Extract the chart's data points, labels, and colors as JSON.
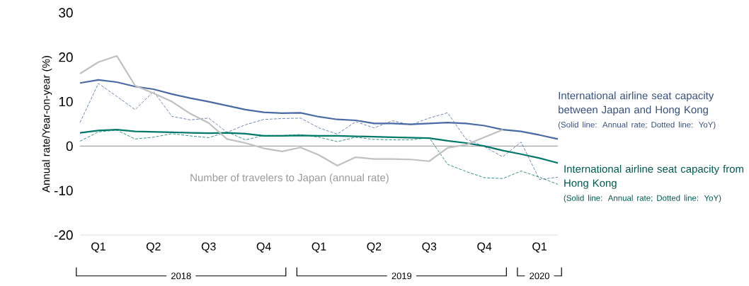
{
  "chart_data": {
    "type": "line",
    "ylabel": "Annual rate/Year-on-year (%)",
    "categories": [
      null,
      "Q1",
      null,
      null,
      "Q2",
      null,
      null,
      "Q3",
      null,
      null,
      "Q4",
      null,
      null,
      "Q1",
      null,
      null,
      "Q2",
      null,
      null,
      "Q3",
      null,
      null,
      "Q4",
      null,
      null,
      "Q1",
      null
    ],
    "series": [
      {
        "name": "International airline seat capacity between Japan and Hong Kong",
        "color": "#4a6aa5",
        "line_style": "solid",
        "values": [
          14.2,
          14.9,
          14.4,
          13.4,
          12.8,
          11.7,
          10.8,
          10.0,
          9.1,
          8.2,
          7.6,
          7.4,
          7.5,
          6.6,
          6.0,
          5.8,
          5.1,
          5.1,
          4.9,
          5.1,
          5.3,
          5.1,
          4.6,
          3.7,
          3.3,
          2.5,
          1.6
        ]
      },
      {
        "color": "#4a6aa5",
        "line_style": "dashed",
        "values": [
          5.3,
          14.1,
          11.2,
          8.2,
          12.3,
          6.7,
          5.9,
          6.3,
          3.1,
          4.8,
          6.0,
          6.2,
          6.3,
          4.1,
          2.7,
          5.5,
          4.1,
          5.7,
          4.8,
          6.3,
          7.5,
          1.6,
          -0.1,
          -2.4,
          0.9,
          -7.5,
          -7.0
        ]
      },
      {
        "name": "International airline seat capacity from Hong Kong",
        "color": "#00786a",
        "line_style": "solid",
        "values": [
          3.0,
          3.5,
          3.7,
          3.3,
          3.2,
          3.1,
          3.0,
          2.9,
          3.0,
          2.8,
          2.3,
          2.3,
          2.4,
          2.3,
          2.3,
          2.2,
          2.1,
          2.0,
          1.9,
          1.8,
          1.2,
          0.7,
          0.0,
          -1.0,
          -1.8,
          -2.7,
          -3.8
        ]
      },
      {
        "color": "#00786a",
        "line_style": "dashed",
        "values": [
          1.1,
          3.2,
          3.6,
          1.6,
          2.0,
          2.8,
          2.3,
          1.9,
          3.2,
          1.4,
          2.4,
          2.4,
          2.6,
          2.0,
          1.0,
          2.0,
          1.5,
          1.4,
          1.4,
          1.9,
          -4.1,
          -5.7,
          -7.1,
          -7.3,
          -5.6,
          -7.0,
          -8.6
        ]
      },
      {
        "name": "Number of travelers to Japan (annual rate)",
        "color": "#c0c0c0",
        "line_style": "solid",
        "values": [
          16.3,
          18.9,
          20.3,
          13.6,
          11.9,
          10.0,
          7.3,
          5.2,
          1.6,
          0.7,
          -0.5,
          -1.2,
          -0.3,
          -2.0,
          -4.4,
          -2.5,
          -2.9,
          -2.9,
          -3.0,
          -3.4,
          -0.4,
          0.3,
          2.0,
          3.7,
          null,
          null,
          null
        ]
      }
    ],
    "annotations": [
      "(Solid line: Annual rate; Dotted line: YoY)",
      "(Solid line: Annual rate; Dotted line: YoY)",
      "2018",
      "2019",
      "2020"
    ],
    "ylim": [
      -20,
      30
    ],
    "yticks": [
      -20,
      -10,
      0,
      10,
      20,
      30
    ],
    "ref_lines": [
      {
        "axis": "y",
        "value": 0,
        "color": "#a6a6a6"
      }
    ],
    "grid": false,
    "legend": false,
    "marker": "none"
  }
}
